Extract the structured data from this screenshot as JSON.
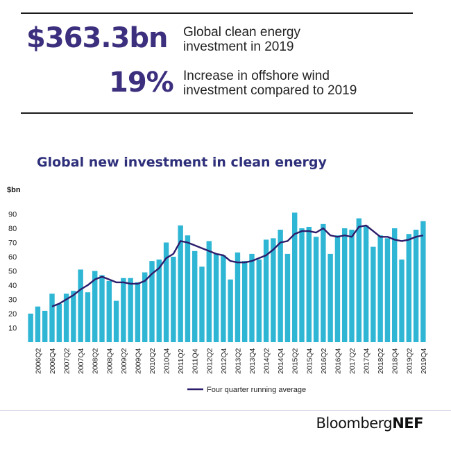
{
  "stats": [
    {
      "value": "$363.3bn",
      "line1": "Global clean energy",
      "line2": "investment in 2019"
    },
    {
      "value": "19%",
      "line1": "Increase in offshore wind",
      "line2": "investment compared to 2019"
    }
  ],
  "logo": {
    "brand": "Bloomberg",
    "suffix": "NEF"
  },
  "colors": {
    "bar": "#2fb6d4",
    "line": "#2d1c6b",
    "title": "#2e2f7a",
    "stat": "#3b2f7e"
  },
  "chart_data": {
    "type": "bar",
    "title": "Global new investment in clean energy",
    "ylabel": "$bn",
    "ylim": [
      0,
      95
    ],
    "yticks": [
      10,
      20,
      30,
      40,
      50,
      60,
      70,
      80,
      90
    ],
    "categories": [
      "2006Q1",
      "2006Q2",
      "2006Q3",
      "2006Q4",
      "2007Q1",
      "2007Q2",
      "2007Q3",
      "2007Q4",
      "2008Q1",
      "2008Q2",
      "2008Q3",
      "2008Q4",
      "2009Q1",
      "2009Q2",
      "2009Q3",
      "2009Q4",
      "2010Q1",
      "2010Q2",
      "2010Q3",
      "2010Q4",
      "2011Q1",
      "2011Q2",
      "2011Q3",
      "2011Q4",
      "2012Q1",
      "2012Q2",
      "2012Q3",
      "2012Q4",
      "2013Q1",
      "2013Q2",
      "2013Q3",
      "2013Q4",
      "2014Q1",
      "2014Q2",
      "2014Q3",
      "2014Q4",
      "2015Q1",
      "2015Q2",
      "2015Q3",
      "2015Q4",
      "2016Q1",
      "2016Q2",
      "2016Q3",
      "2016Q4",
      "2017Q1",
      "2017Q2",
      "2017Q3",
      "2017Q4",
      "2018Q1",
      "2018Q2",
      "2018Q3",
      "2018Q4",
      "2019Q1",
      "2019Q2",
      "2019Q3",
      "2019Q4"
    ],
    "tick_labels": [
      "2006Q2",
      "2006Q4",
      "2007Q2",
      "2007Q4",
      "2008Q2",
      "2008Q4",
      "2009Q2",
      "2009Q4",
      "2010Q2",
      "2010Q4",
      "2011Q2",
      "2011Q4",
      "2012Q2",
      "2012Q4",
      "2013Q2",
      "2013Q4",
      "2014Q2",
      "2014Q4",
      "2015Q2",
      "2015Q4",
      "2016Q2",
      "2016Q4",
      "2017Q2",
      "2017Q4",
      "2018Q2",
      "2018Q4",
      "2019Q2",
      "2019Q4"
    ],
    "series": [
      {
        "type": "bar",
        "values": [
          20,
          25,
          22,
          34,
          27,
          34,
          36,
          51,
          35,
          50,
          47,
          43,
          29,
          45,
          45,
          42,
          49,
          57,
          58,
          70,
          60,
          82,
          75,
          64,
          53,
          71,
          62,
          61,
          44,
          63,
          57,
          62,
          58,
          72,
          73,
          79,
          62,
          91,
          80,
          81,
          74,
          83,
          62,
          75,
          80,
          79,
          87,
          82,
          67,
          75,
          73,
          80,
          58,
          76,
          79,
          85
        ]
      },
      {
        "type": "line",
        "name": "Four quarter running average",
        "values": [
          null,
          null,
          null,
          25,
          27,
          30,
          33,
          37,
          40,
          44,
          46,
          44,
          42,
          42,
          41,
          41,
          43,
          48,
          52,
          59,
          62,
          71,
          70,
          68,
          66,
          64,
          62,
          61,
          57,
          56,
          56,
          57,
          59,
          61,
          65,
          70,
          71,
          76,
          78,
          78,
          77,
          80,
          75,
          74,
          75,
          74,
          81,
          82,
          78,
          74,
          74,
          72,
          71,
          72,
          74,
          75
        ]
      }
    ]
  }
}
